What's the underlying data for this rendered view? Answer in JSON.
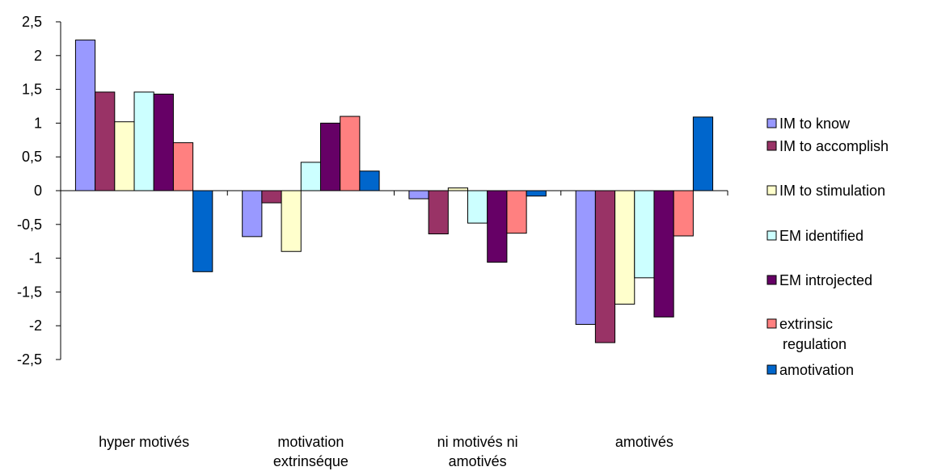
{
  "chart_data": {
    "type": "bar",
    "title": "",
    "xlabel": "",
    "ylabel": "",
    "ylim": [
      -2.5,
      2.5
    ],
    "yticks": [
      "2,5",
      "2",
      "1,5",
      "1",
      "0,5",
      "0",
      "-0,5",
      "-1",
      "-1,5",
      "-2",
      "-2,5"
    ],
    "ytick_values": [
      2.5,
      2,
      1.5,
      1,
      0.5,
      0,
      -0.5,
      -1,
      -1.5,
      -2,
      -2.5
    ],
    "grid": false,
    "legend_position": "right",
    "categories": [
      [
        "hyper motivés"
      ],
      [
        "motivation",
        "extrinséque"
      ],
      [
        "ni motivés ni",
        "amotivés"
      ],
      [
        "amotivés"
      ]
    ],
    "series": [
      {
        "name": [
          "IM to know"
        ],
        "color": "#9999FF",
        "values": [
          2.23,
          -0.68,
          -0.12,
          -1.98
        ]
      },
      {
        "name": [
          "IM to accomplish"
        ],
        "color": "#993366",
        "values": [
          1.46,
          -0.18,
          -0.64,
          -2.25
        ]
      },
      {
        "name": [
          "IM to stimulation"
        ],
        "color": "#FFFFCC",
        "values": [
          1.02,
          -0.9,
          0.04,
          -1.68
        ]
      },
      {
        "name": [
          "EM identified"
        ],
        "color": "#CCFFFF",
        "values": [
          1.46,
          0.42,
          -0.48,
          -1.29
        ]
      },
      {
        "name": [
          "EM introjected"
        ],
        "color": "#660066",
        "values": [
          1.43,
          1.0,
          -1.06,
          -1.87
        ]
      },
      {
        "name": [
          "extrinsic",
          "regulation"
        ],
        "color": "#FF8080",
        "values": [
          0.71,
          1.1,
          -0.63,
          -0.67
        ]
      },
      {
        "name": [
          "amotivation"
        ],
        "color": "#0066CC",
        "values": [
          -1.2,
          0.29,
          -0.08,
          1.09
        ]
      }
    ]
  }
}
